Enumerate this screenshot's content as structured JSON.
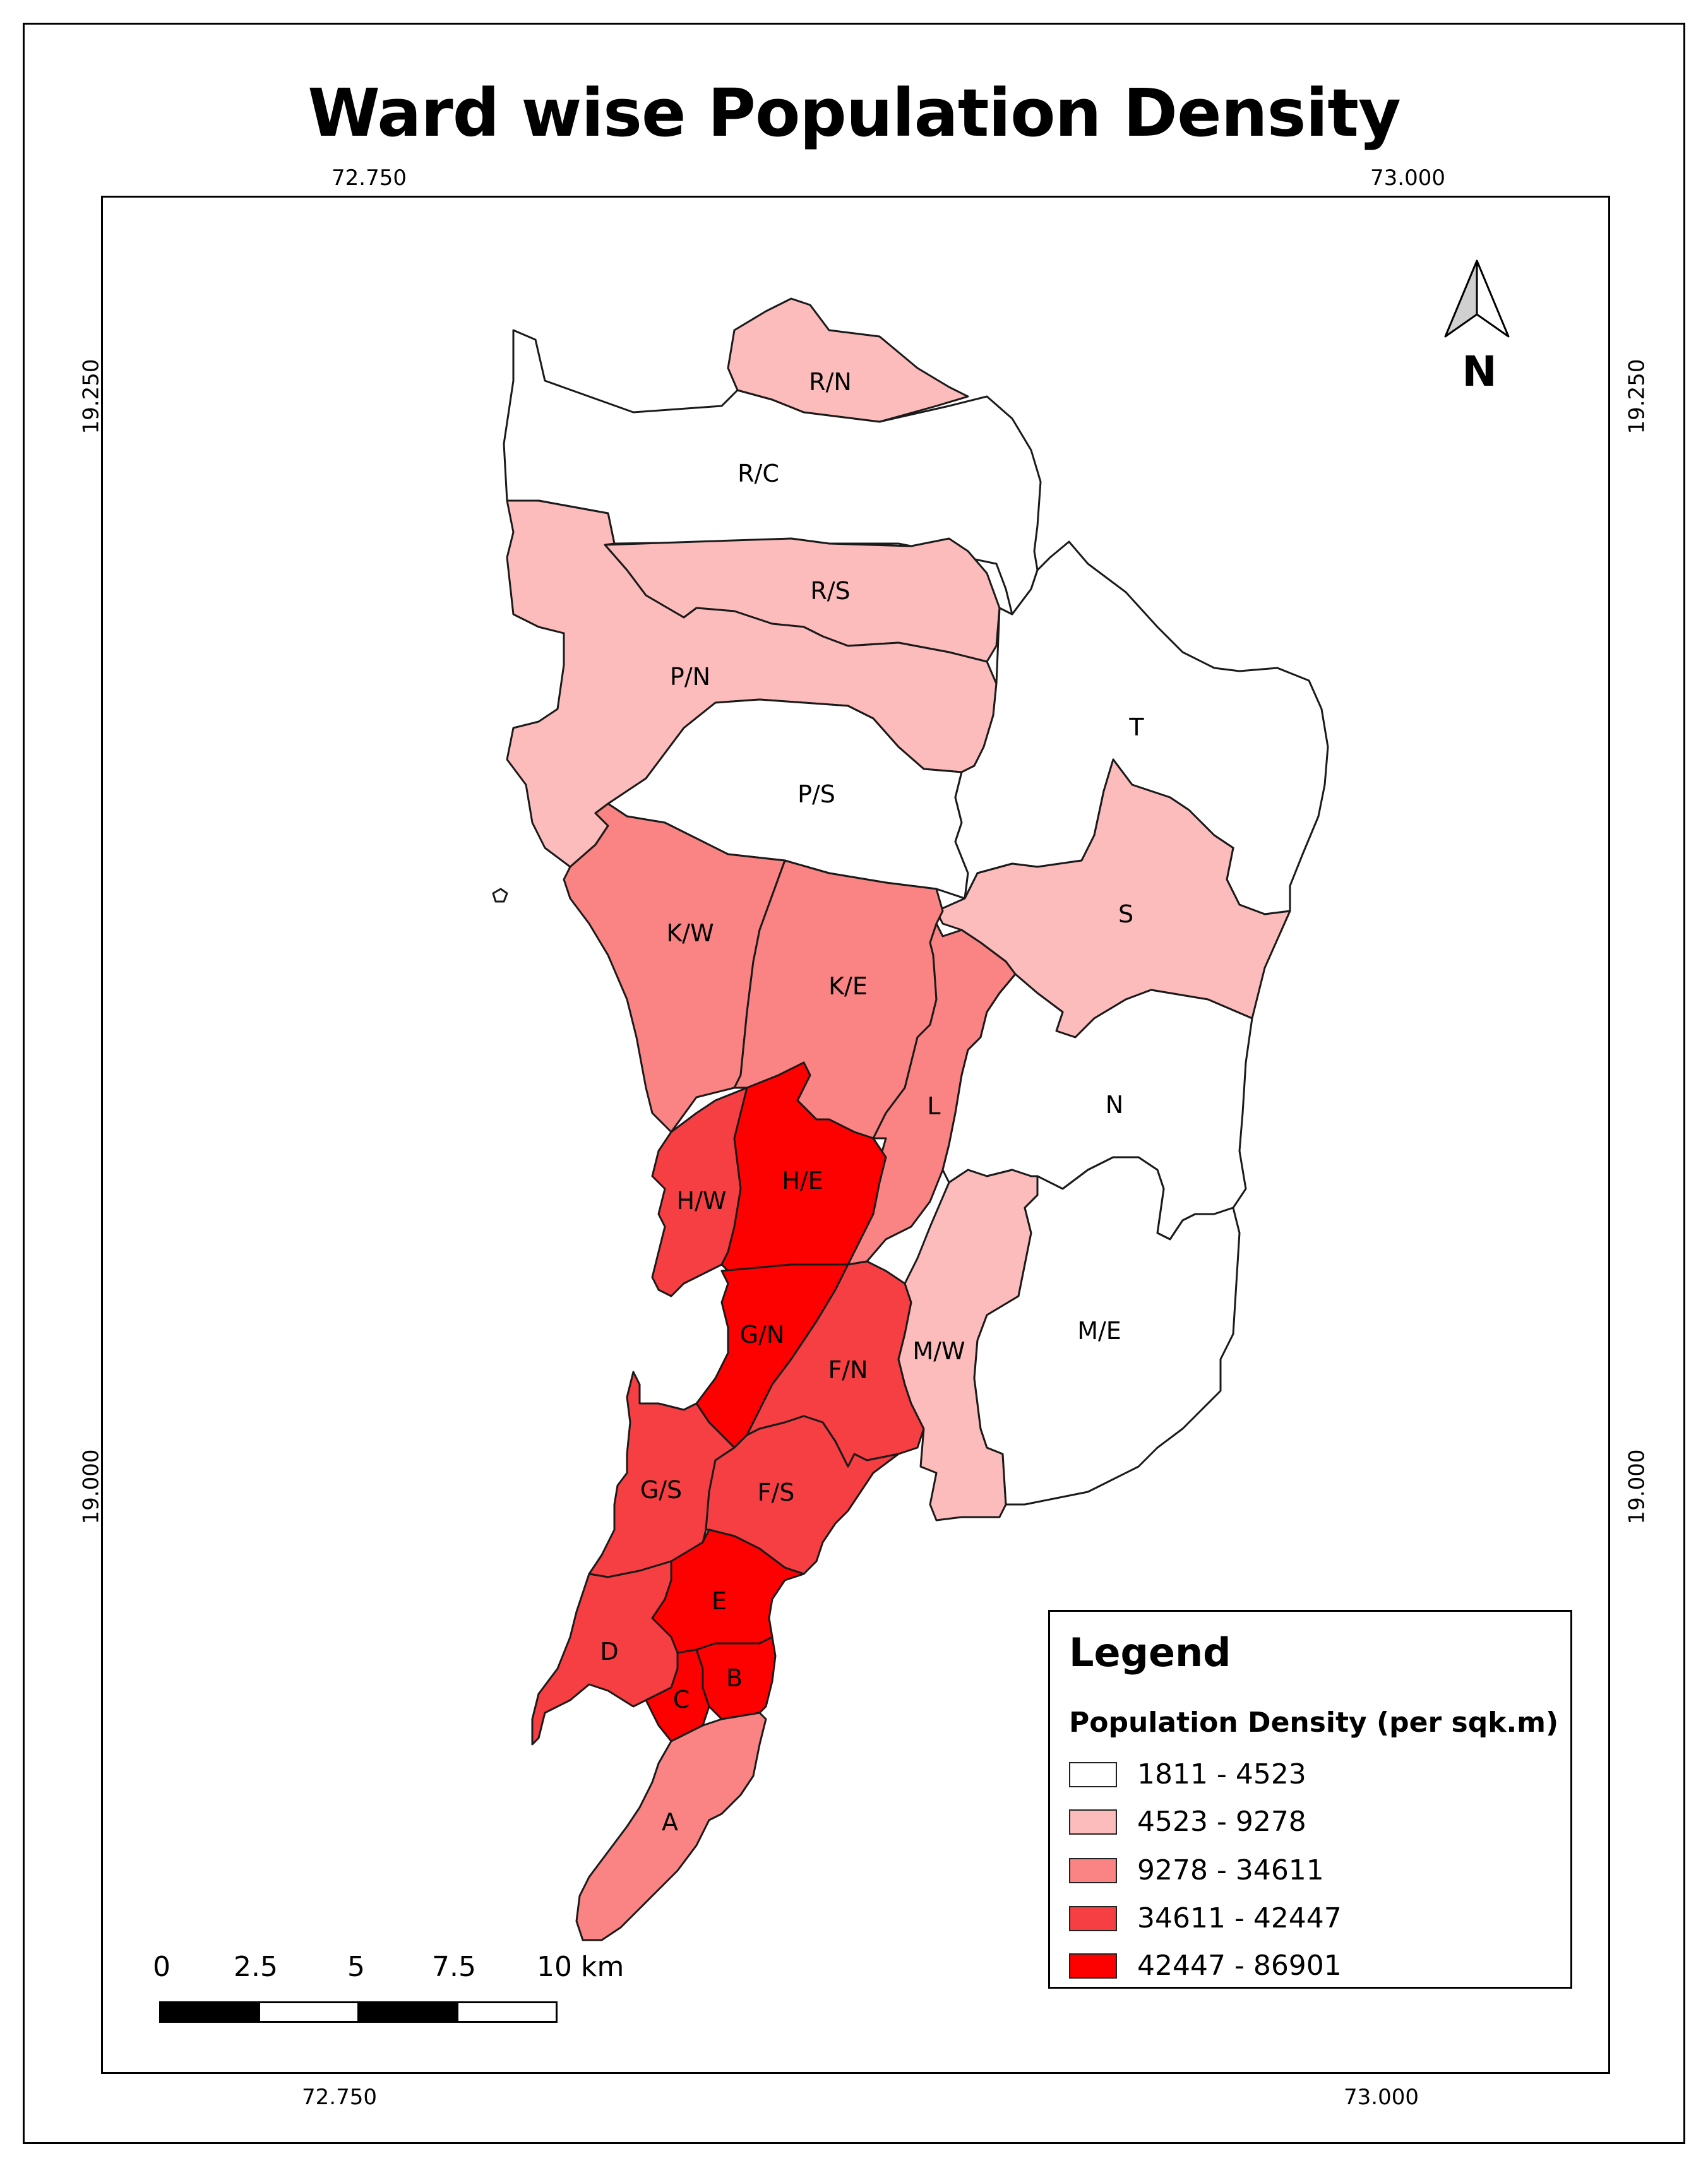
{
  "title": "Ward wise Population Density",
  "coordinates": {
    "lon_left": "72.750",
    "lon_right": "73.000",
    "lat_top": "19.250",
    "lat_bottom": "19.000"
  },
  "north_arrow": {
    "label": "N",
    "icon": "north-arrow-icon"
  },
  "legend": {
    "title": "Legend",
    "subtitle": "Population Density (per sqk.m)",
    "classes": [
      {
        "label": "1811 - 4523",
        "color": "#ffffff"
      },
      {
        "label": "4523 - 9278",
        "color": "#fcbcbc"
      },
      {
        "label": "9278 - 34611",
        "color": "#fa8383"
      },
      {
        "label": "34611 - 42447",
        "color": "#f63f42"
      },
      {
        "label": "42447 - 86901",
        "color": "#fd0000"
      }
    ]
  },
  "scale_bar": {
    "labels": [
      "0",
      "2.5",
      "5",
      "7.5",
      "10 km"
    ]
  },
  "wards": [
    {
      "name": "R/N",
      "class": 1
    },
    {
      "name": "R/C",
      "class": 0
    },
    {
      "name": "R/S",
      "class": 1
    },
    {
      "name": "P/N",
      "class": 1
    },
    {
      "name": "P/S",
      "class": 0
    },
    {
      "name": "T",
      "class": 0
    },
    {
      "name": "S",
      "class": 1
    },
    {
      "name": "K/W",
      "class": 2
    },
    {
      "name": "K/E",
      "class": 2
    },
    {
      "name": "L",
      "class": 2
    },
    {
      "name": "N",
      "class": 0
    },
    {
      "name": "H/W",
      "class": 3
    },
    {
      "name": "H/E",
      "class": 4
    },
    {
      "name": "G/N",
      "class": 4
    },
    {
      "name": "F/N",
      "class": 3
    },
    {
      "name": "M/W",
      "class": 1
    },
    {
      "name": "M/E",
      "class": 0
    },
    {
      "name": "G/S",
      "class": 3
    },
    {
      "name": "F/S",
      "class": 3
    },
    {
      "name": "E",
      "class": 4
    },
    {
      "name": "D",
      "class": 3
    },
    {
      "name": "C",
      "class": 4
    },
    {
      "name": "B",
      "class": 4
    },
    {
      "name": "A",
      "class": 2
    }
  ]
}
